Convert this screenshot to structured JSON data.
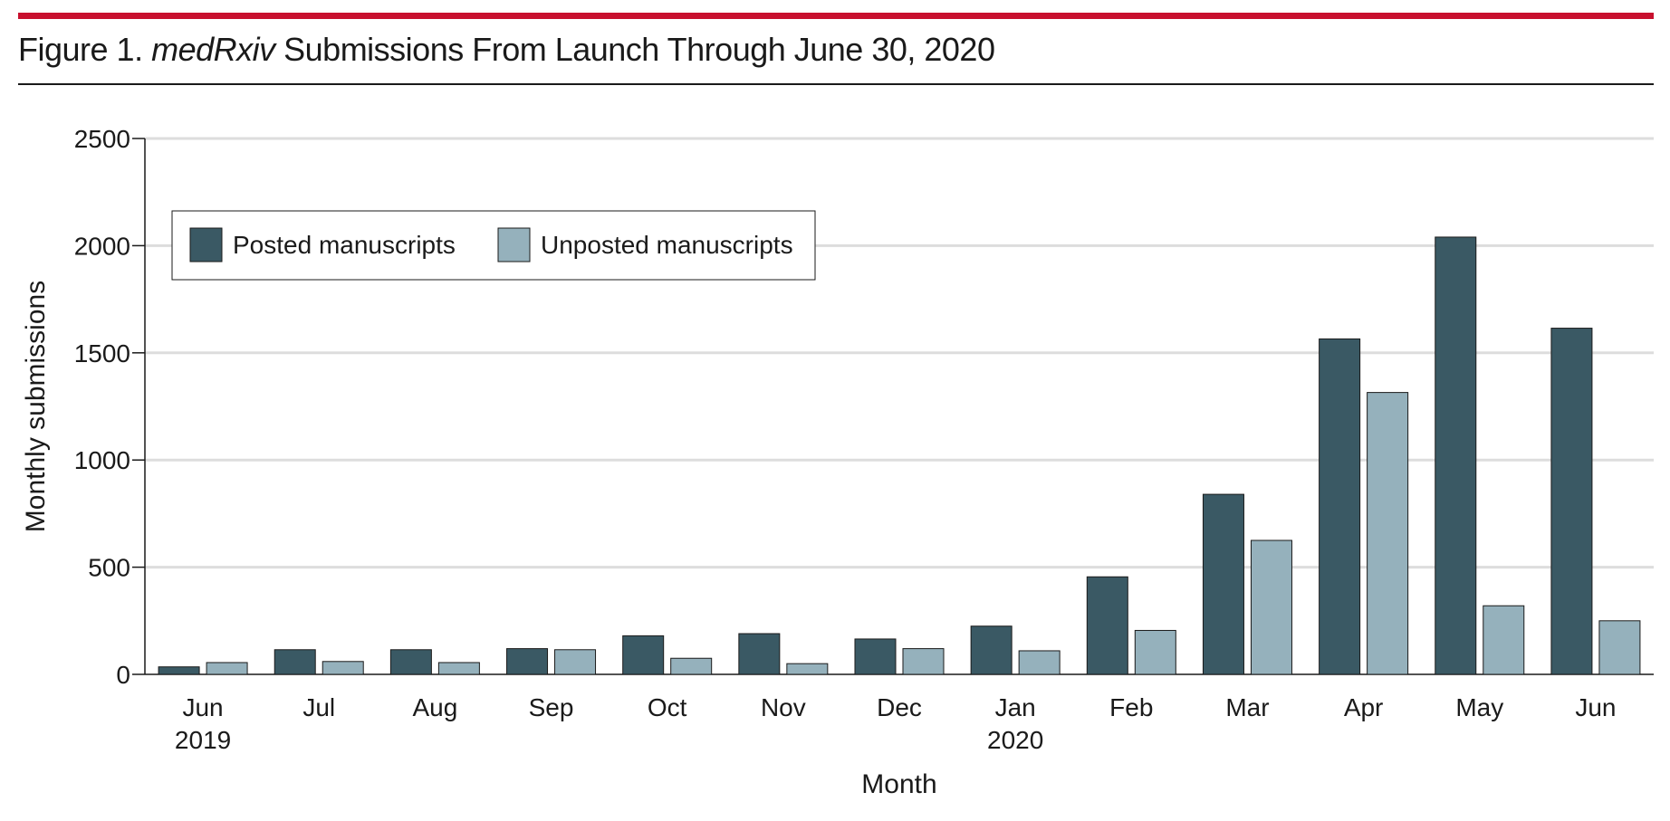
{
  "figure": {
    "label": "Figure 1.",
    "title_italic": "medRxiv",
    "title_rest": "Submissions From Launch Through June 30, 2020"
  },
  "colors": {
    "accent": "#c8102e",
    "posted": "#3a5964",
    "unposted": "#95b1bc",
    "grid": "#dddddd"
  },
  "chart_data": {
    "type": "bar",
    "xlabel": "Month",
    "ylabel": "Monthly submissions",
    "ylim": [
      0,
      2500
    ],
    "yticks": [
      0,
      500,
      1000,
      1500,
      2000,
      2500
    ],
    "grid": true,
    "legend_position": "top-left",
    "categories": [
      "Jun",
      "Jul",
      "Aug",
      "Sep",
      "Oct",
      "Nov",
      "Dec",
      "Jan",
      "Feb",
      "Mar",
      "Apr",
      "May",
      "Jun"
    ],
    "category_sublabels": [
      "2019",
      "",
      "",
      "",
      "",
      "",
      "",
      "2020",
      "",
      "",
      "",
      "",
      ""
    ],
    "series": [
      {
        "name": "Posted manuscripts",
        "color": "#3a5964",
        "values": [
          35,
          115,
          115,
          120,
          180,
          190,
          165,
          225,
          455,
          840,
          1565,
          2040,
          1615
        ]
      },
      {
        "name": "Unposted manuscripts",
        "color": "#95b1bc",
        "values": [
          55,
          60,
          55,
          115,
          75,
          50,
          120,
          110,
          205,
          625,
          1315,
          320,
          250
        ]
      }
    ]
  }
}
